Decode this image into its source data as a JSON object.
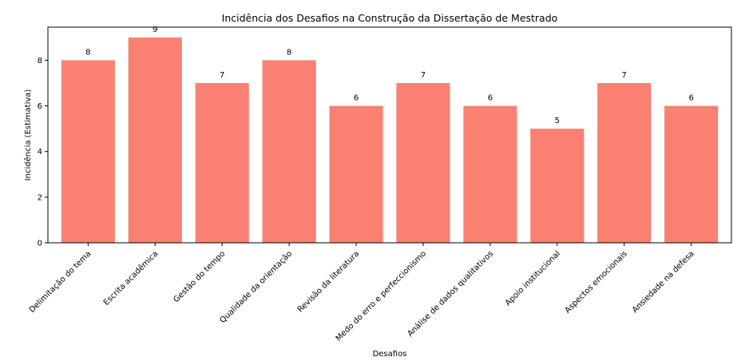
{
  "chart_data": {
    "type": "bar",
    "title": "Incidência dos Desafios na Construção da Dissertação de Mestrado",
    "xlabel": "Desafios",
    "ylabel": "Incidência (Estimativa)",
    "categories": [
      "Delimitação do tema",
      "Escrita acadêmica",
      "Gestão do tempo",
      "Qualidade da orientação",
      "Revisão da literatura",
      "Medo do erro e perfeccionismo",
      "Análise de dados qualitativos",
      "Apoio institucional",
      "Aspectos emocionais",
      "Ansiedade na defesa"
    ],
    "values": [
      8,
      9,
      7,
      8,
      6,
      7,
      6,
      5,
      7,
      6
    ],
    "ylim": [
      0,
      9.45
    ],
    "yticks": [
      0,
      2,
      4,
      6,
      8
    ],
    "bar_color": "#fa8072",
    "grid": false,
    "legend": "none"
  }
}
